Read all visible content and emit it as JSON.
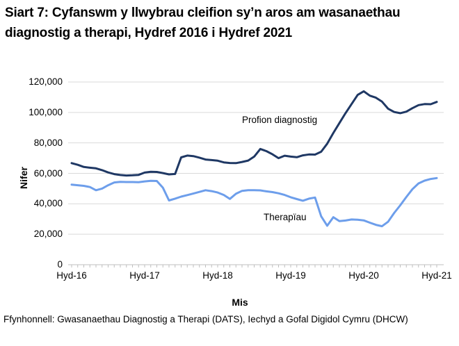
{
  "title": "Siart 7: Cyfanswm y llwybrau cleifion sy’n aros am wasanaethau diagnostig a therapi, Hydref 2016 i Hydref 2021",
  "footnote": "Ffynhonnell: Gwasanaethau Diagnostig a Therapi (DATS), Iechyd a Gofal Digidol Cymru (DHCW)",
  "colors": {
    "diagnostics_line": "#1F3864",
    "therapies_line": "#6D9EEB",
    "gridline": "#D9D9D9",
    "axis": "#BFBFBF",
    "text": "#000000",
    "background": "#FFFFFF"
  },
  "chart_data": {
    "type": "line",
    "title": "Siart 7: Cyfanswm y llwybrau cleifion sy’n aros am wasanaethau diagnostig a therapi, Hydref 2016 i Hydref 2021",
    "xlabel": "Mis",
    "ylabel": "Nifer",
    "ylim": [
      0,
      120000
    ],
    "y_ticks": [
      0,
      20000,
      40000,
      60000,
      80000,
      100000,
      120000
    ],
    "x_tick_labels": [
      "Hyd-16",
      "Hyd-17",
      "Hyd-18",
      "Hyd-19",
      "Hyd-20",
      "Hyd-21"
    ],
    "x_interval": "monthly",
    "x_range": [
      "Hyd-16",
      "Hyd-21"
    ],
    "grid": "horizontal",
    "legend_position": "inline-annotations",
    "annotations": [
      {
        "text": "Profion diagnostig",
        "attached_to": "Profion diagnostig"
      },
      {
        "text": "Therapïau",
        "attached_to": "Therapïau"
      }
    ],
    "series": [
      {
        "name": "Profion diagnostig",
        "color": "#1F3864",
        "values": [
          66700,
          65600,
          64200,
          63700,
          63300,
          62100,
          60600,
          59500,
          58900,
          58600,
          58700,
          59000,
          60500,
          61000,
          60900,
          60200,
          59300,
          59600,
          70500,
          71700,
          71300,
          70300,
          69100,
          68700,
          68300,
          67200,
          66800,
          66700,
          67500,
          68400,
          71000,
          76000,
          74600,
          72500,
          70000,
          71600,
          71000,
          70600,
          71800,
          72400,
          72300,
          74200,
          79500,
          86500,
          93000,
          99500,
          105500,
          111500,
          113900,
          111000,
          109700,
          107100,
          102500,
          100300,
          99500,
          100500,
          102800,
          104800,
          105500,
          105400,
          106900
        ]
      },
      {
        "name": "Therapïau",
        "color": "#6D9EEB",
        "values": [
          52600,
          52200,
          51800,
          51000,
          48900,
          50000,
          52200,
          54000,
          54400,
          54300,
          54300,
          54200,
          54700,
          55100,
          55000,
          50500,
          42200,
          43400,
          44700,
          45700,
          46700,
          47800,
          48900,
          48300,
          47400,
          45800,
          43200,
          46600,
          48500,
          48900,
          48900,
          48800,
          48200,
          47700,
          46900,
          45800,
          44300,
          43100,
          42000,
          43400,
          44100,
          31800,
          25600,
          31200,
          28600,
          29000,
          29700,
          29500,
          29100,
          27600,
          26200,
          25300,
          28200,
          34000,
          39000,
          44500,
          49600,
          53400,
          55200,
          56300,
          56900
        ]
      }
    ]
  }
}
